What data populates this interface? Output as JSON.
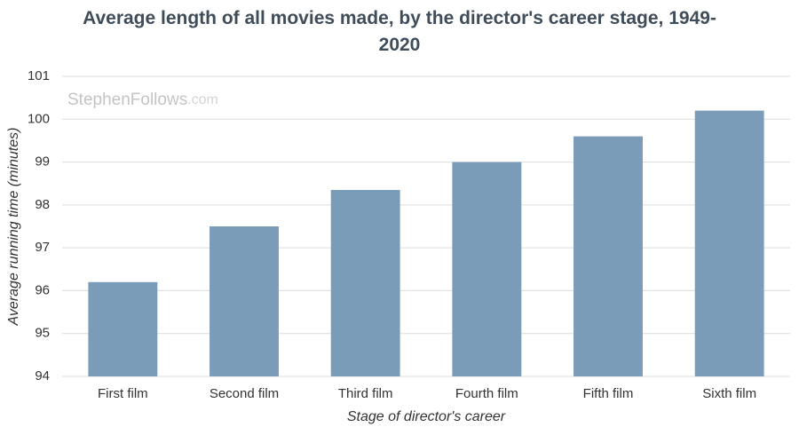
{
  "chart_data": {
    "type": "bar",
    "title": "Average length of all movies made, by the director's career stage, 1949-2020",
    "watermark": {
      "name": "StephenFollows",
      "suffix": ".com"
    },
    "categories": [
      "First film",
      "Second film",
      "Third film",
      "Fourth film",
      "Fifth film",
      "Sixth film"
    ],
    "values": [
      96.2,
      97.5,
      98.35,
      99.0,
      99.6,
      100.2
    ],
    "color": "#7a9cb8",
    "xlabel": "Stage of director's career",
    "ylabel": "Average running time (minutes)",
    "ylim": [
      94,
      101
    ],
    "yticks": [
      94,
      95,
      96,
      97,
      98,
      99,
      100,
      101
    ],
    "grid": true
  }
}
